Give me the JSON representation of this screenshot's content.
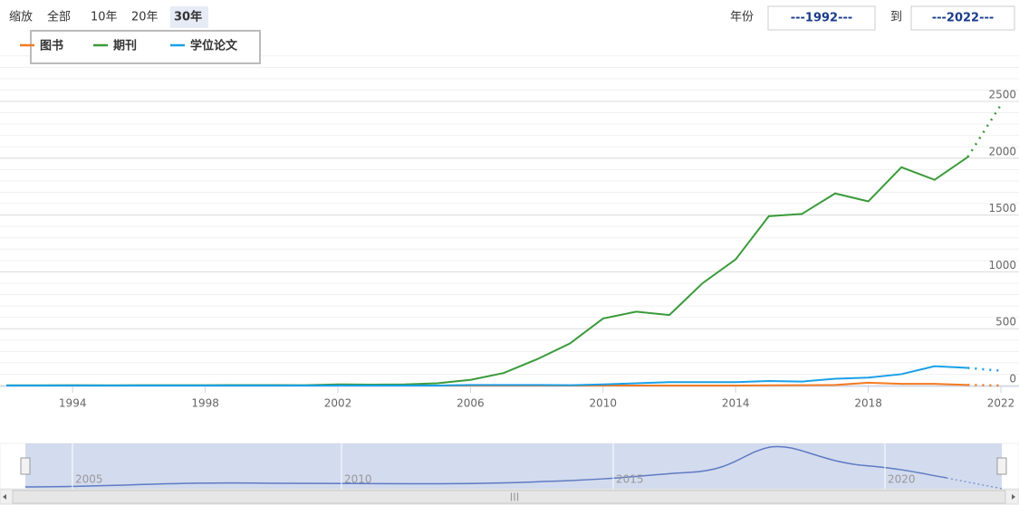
{
  "zoom_label": "缩放",
  "zoom_buttons": [
    "全部",
    "10年",
    "20年",
    "30年"
  ],
  "zoom_selected": 3,
  "range_label": "年份",
  "range_from": "---1992---",
  "range_to_label": "到",
  "range_to": "---2022---",
  "navigator_ticks": [
    "2005",
    "2010",
    "2015",
    "2020"
  ],
  "navigator_scroll_label": "III",
  "chart_data": {
    "type": "line",
    "x": [
      1992,
      1993,
      1994,
      1995,
      1996,
      1997,
      1998,
      1999,
      2000,
      2001,
      2002,
      2003,
      2004,
      2005,
      2006,
      2007,
      2008,
      2009,
      2010,
      2011,
      2012,
      2013,
      2014,
      2015,
      2016,
      2017,
      2018,
      2019,
      2020,
      2021,
      2022
    ],
    "series": [
      {
        "name": "图书",
        "color": "#f47a20",
        "values": [
          0,
          0,
          0,
          0,
          0,
          0,
          0,
          0,
          0,
          0,
          0,
          0,
          0,
          0,
          0,
          0,
          0,
          0,
          0,
          0,
          0,
          0,
          0,
          2,
          3,
          5,
          25,
          15,
          15,
          5,
          0
        ]
      },
      {
        "name": "期刊",
        "color": "#3a9a3a",
        "values": [
          2,
          2,
          3,
          2,
          3,
          3,
          3,
          4,
          4,
          3,
          10,
          8,
          10,
          20,
          50,
          110,
          230,
          370,
          590,
          650,
          620,
          900,
          1110,
          1490,
          1510,
          1690,
          1620,
          1920,
          1810,
          2010,
          2470
        ]
      },
      {
        "name": "学位论文",
        "color": "#1aa0e8",
        "values": [
          0,
          0,
          0,
          0,
          0,
          0,
          0,
          0,
          0,
          0,
          0,
          0,
          0,
          0,
          5,
          5,
          5,
          3,
          10,
          20,
          30,
          30,
          30,
          40,
          35,
          60,
          70,
          100,
          170,
          155,
          130
        ]
      }
    ],
    "xlim": [
      1992,
      2022
    ],
    "xticks": [
      1994,
      1998,
      2002,
      2006,
      2010,
      2014,
      2018,
      2022
    ],
    "ylim": [
      0,
      2500
    ],
    "yticks": [
      0,
      500,
      1000,
      1500,
      2000,
      2500
    ],
    "grid": true,
    "last_segment_dotted": true,
    "legend_position": "top-left"
  }
}
